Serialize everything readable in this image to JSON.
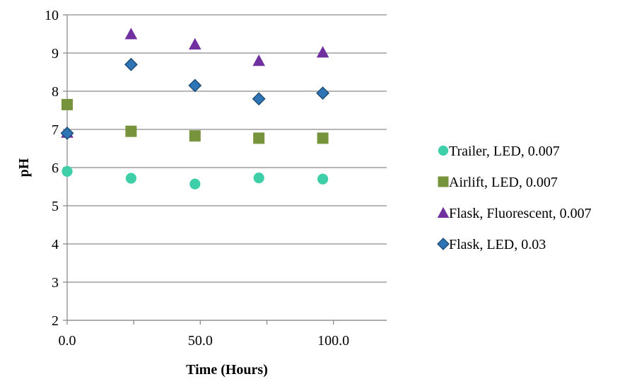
{
  "chart_data": {
    "type": "scatter",
    "title": "",
    "xlabel": "Time (Hours)",
    "ylabel": "pH",
    "xlim": [
      0,
      120
    ],
    "ylim": [
      2,
      10
    ],
    "x_ticks": [
      0,
      50,
      100
    ],
    "x_tick_labels": [
      "0.0",
      "50.0",
      "100.0"
    ],
    "y_ticks": [
      2,
      3,
      4,
      5,
      6,
      7,
      8,
      9,
      10
    ],
    "y_tick_labels": [
      "2",
      "3",
      "4",
      "5",
      "6",
      "7",
      "8",
      "9",
      "10"
    ],
    "grid": "horizontal",
    "legend_position": "right",
    "series": [
      {
        "name": "Trailer, LED, 0.007",
        "marker": "circle",
        "color": "#3ecfa9",
        "points": [
          [
            0,
            5.9
          ],
          [
            24,
            5.72
          ],
          [
            48,
            5.57
          ],
          [
            72,
            5.73
          ],
          [
            96,
            5.7
          ]
        ]
      },
      {
        "name": "Airlift, LED, 0.007",
        "marker": "square",
        "color": "#77933c",
        "points": [
          [
            0,
            7.65
          ],
          [
            24,
            6.95
          ],
          [
            48,
            6.83
          ],
          [
            72,
            6.77
          ],
          [
            96,
            6.77
          ]
        ]
      },
      {
        "name": "Flask, Fluorescent, 0.007",
        "marker": "triangle",
        "color": "#7030a0",
        "points": [
          [
            0,
            6.92
          ],
          [
            24,
            9.5
          ],
          [
            48,
            9.23
          ],
          [
            72,
            8.8
          ],
          [
            96,
            9.02
          ]
        ]
      },
      {
        "name": "Flask, LED, 0.03",
        "marker": "diamond",
        "color": "#2e75b6",
        "points": [
          [
            0,
            6.9
          ],
          [
            24,
            8.7
          ],
          [
            48,
            8.15
          ],
          [
            72,
            7.8
          ],
          [
            96,
            7.95
          ]
        ]
      }
    ]
  }
}
